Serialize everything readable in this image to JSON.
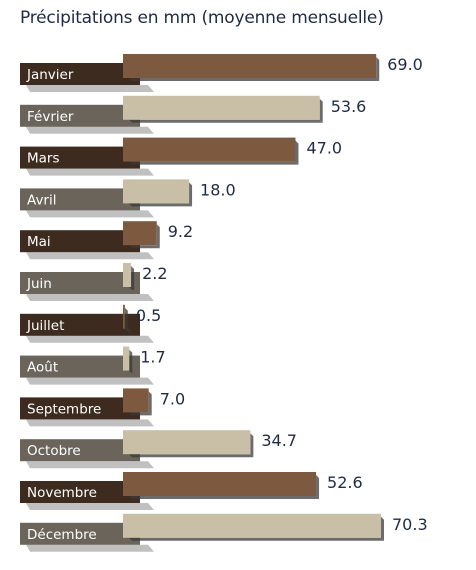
{
  "chart_data": {
    "type": "bar",
    "orientation": "horizontal",
    "title": "Précipitations en mm (moyenne mensuelle)",
    "categories": [
      "Janvier",
      "Février",
      "Mars",
      "Avril",
      "Mai",
      "Juin",
      "Juillet",
      "Août",
      "Septembre",
      "Octobre",
      "Novembre",
      "Décembre"
    ],
    "values": [
      69.0,
      53.6,
      47.0,
      18.0,
      9.2,
      2.2,
      0.5,
      1.7,
      7.0,
      34.7,
      52.6,
      70.3
    ],
    "value_labels": [
      "69.0",
      "53.6",
      "47.0",
      "18.0",
      "9.2",
      "2.2",
      "0.5",
      "1.7",
      "7.0",
      "34.7",
      "52.6",
      "70.3"
    ],
    "xlim": [
      0,
      70.3
    ],
    "grid": false,
    "colors": {
      "bar_dark": "#7d5a3f",
      "bar_light": "#c9bea6",
      "label_dark": "#3d2b1f",
      "label_light": "#6a645a",
      "shadow": "#3a3a3a",
      "value_text": "#1f2a44"
    }
  }
}
